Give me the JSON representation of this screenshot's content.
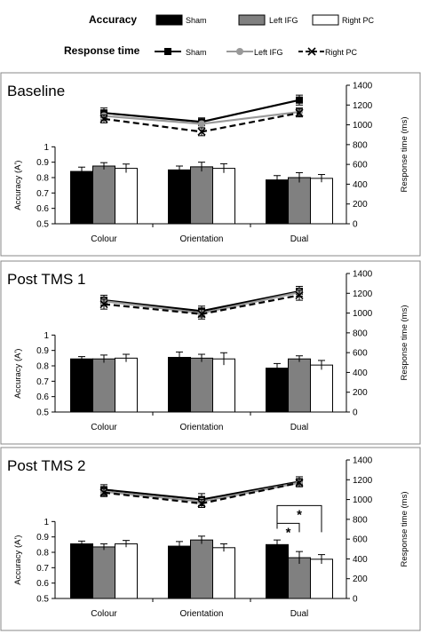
{
  "legend": {
    "accuracy_title": "Accuracy",
    "rt_title": "Response time",
    "items": [
      {
        "name": "Sham",
        "bar_color": "#000000",
        "line_color": "#000000",
        "marker": "square",
        "dash": "solid"
      },
      {
        "name": "Left IFG",
        "bar_color": "#808080",
        "line_color": "#999999",
        "marker": "circle",
        "dash": "solid"
      },
      {
        "name": "Right PC",
        "bar_color": "#ffffff",
        "line_color": "#000000",
        "marker": "x",
        "dash": "dashed"
      }
    ]
  },
  "chart_data": [
    {
      "type": "bar",
      "title": "Baseline",
      "categories": [
        "Colour",
        "Orientation",
        "Dual"
      ],
      "ylabel": "Accuracy (A')",
      "ylim": [
        0.5,
        1.4
      ],
      "yticks": [
        "0.5",
        "0.6",
        "0.7",
        "0.8",
        "0.9",
        "1"
      ],
      "y2label": "Response time (ms)",
      "y2lim": [
        0,
        1400
      ],
      "y2ticks": [
        "0",
        "200",
        "400",
        "600",
        "800",
        "1000",
        "1200",
        "1400"
      ],
      "series": [
        {
          "name": "Sham",
          "values": [
            0.84,
            0.85,
            0.785
          ],
          "errors": [
            0.028,
            0.025,
            0.028
          ]
        },
        {
          "name": "Left IFG",
          "values": [
            0.875,
            0.87,
            0.8
          ],
          "errors": [
            0.022,
            0.03,
            0.032
          ]
        },
        {
          "name": "Right PC",
          "values": [
            0.86,
            0.86,
            0.795
          ],
          "errors": [
            0.028,
            0.03,
            0.025
          ]
        }
      ],
      "rt_series": [
        {
          "name": "Sham",
          "values": [
            1120,
            1030,
            1250
          ],
          "errors": [
            50,
            40,
            50
          ]
        },
        {
          "name": "Left IFG",
          "values": [
            1090,
            1010,
            1130
          ],
          "errors": [
            40,
            40,
            40
          ]
        },
        {
          "name": "Right PC",
          "values": [
            1060,
            930,
            1120
          ],
          "errors": [
            40,
            40,
            40
          ]
        }
      ],
      "significance": []
    },
    {
      "type": "bar",
      "title": "Post TMS 1",
      "categories": [
        "Colour",
        "Orientation",
        "Dual"
      ],
      "ylabel": "Accuracy (A')",
      "ylim": [
        0.5,
        1.4
      ],
      "yticks": [
        "0.5",
        "0.6",
        "0.7",
        "0.8",
        "0.9",
        "1"
      ],
      "y2label": "Response time (ms)",
      "y2lim": [
        0,
        1400
      ],
      "y2ticks": [
        "0",
        "200",
        "400",
        "600",
        "800",
        "1000",
        "1200",
        "1400"
      ],
      "series": [
        {
          "name": "Sham",
          "values": [
            0.845,
            0.855,
            0.785
          ],
          "errors": [
            0.015,
            0.035,
            0.03
          ]
        },
        {
          "name": "Left IFG",
          "values": [
            0.845,
            0.85,
            0.845
          ],
          "errors": [
            0.025,
            0.025,
            0.02
          ]
        },
        {
          "name": "Right PC",
          "values": [
            0.85,
            0.845,
            0.805
          ],
          "errors": [
            0.025,
            0.04,
            0.03
          ]
        }
      ],
      "rt_series": [
        {
          "name": "Sham",
          "values": [
            1130,
            1020,
            1220
          ],
          "errors": [
            50,
            50,
            50
          ]
        },
        {
          "name": "Left IFG",
          "values": [
            1120,
            1000,
            1210
          ],
          "errors": [
            40,
            40,
            40
          ]
        },
        {
          "name": "Right PC",
          "values": [
            1090,
            990,
            1180
          ],
          "errors": [
            50,
            50,
            50
          ]
        }
      ],
      "significance": []
    },
    {
      "type": "bar",
      "title": "Post TMS 2",
      "categories": [
        "Colour",
        "Orientation",
        "Dual"
      ],
      "ylabel": "Accuracy (A')",
      "ylim": [
        0.5,
        1.4
      ],
      "yticks": [
        "0.5",
        "0.6",
        "0.7",
        "0.8",
        "0.9",
        "1"
      ],
      "y2label": "Response time (ms)",
      "y2lim": [
        0,
        1400
      ],
      "y2ticks": [
        "0",
        "200",
        "400",
        "600",
        "800",
        "1000",
        "1200",
        "1400"
      ],
      "series": [
        {
          "name": "Sham",
          "values": [
            0.855,
            0.84,
            0.85
          ],
          "errors": [
            0.018,
            0.03,
            0.03
          ]
        },
        {
          "name": "Left IFG",
          "values": [
            0.835,
            0.88,
            0.765
          ],
          "errors": [
            0.02,
            0.025,
            0.04
          ]
        },
        {
          "name": "Right PC",
          "values": [
            0.855,
            0.83,
            0.755
          ],
          "errors": [
            0.022,
            0.025,
            0.03
          ]
        }
      ],
      "rt_series": [
        {
          "name": "Sham",
          "values": [
            1100,
            1000,
            1180
          ],
          "errors": [
            50,
            60,
            50
          ]
        },
        {
          "name": "Left IFG",
          "values": [
            1080,
            980,
            1170
          ],
          "errors": [
            40,
            40,
            40
          ]
        },
        {
          "name": "Right PC",
          "values": [
            1070,
            960,
            1170
          ],
          "errors": [
            40,
            40,
            40
          ]
        }
      ],
      "significance": [
        {
          "category": "Dual",
          "from": "Sham",
          "to": "Left IFG",
          "label": "*"
        },
        {
          "category": "Dual",
          "from": "Sham",
          "to": "Right PC",
          "label": "*"
        }
      ]
    }
  ]
}
